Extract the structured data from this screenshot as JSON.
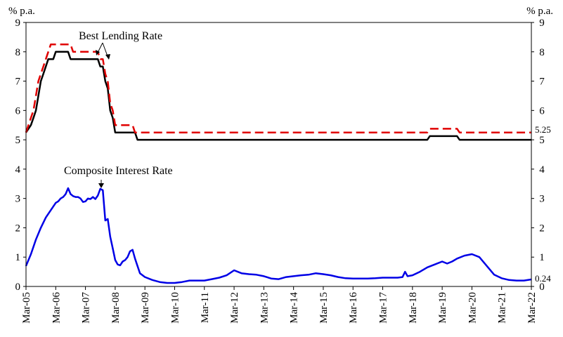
{
  "chart_data": {
    "type": "line",
    "title": "",
    "y_unit_left": "% p.a.",
    "y_unit_right": "% p.a.",
    "ylim": [
      0,
      9
    ],
    "y_ticks": [
      "0",
      "1",
      "2",
      "3",
      "4",
      "5",
      "6",
      "7",
      "8",
      "9"
    ],
    "xlim": [
      "2005-03",
      "2022-03"
    ],
    "x_ticks": [
      "Mar-05",
      "Mar-06",
      "Mar-07",
      "Mar-08",
      "Mar-09",
      "Mar-10",
      "Mar-11",
      "Mar-12",
      "Mar-13",
      "Mar-14",
      "Mar-15",
      "Mar-16",
      "Mar-17",
      "Mar-18",
      "Mar-19",
      "Mar-20",
      "Mar-21",
      "Mar-22"
    ],
    "grid": false,
    "annotations": {
      "best_lending_rate": "Best Lending Rate",
      "composite_interest_rate": "Composite Interest Rate",
      "end_label_upper": "5.25",
      "end_label_lower": "0.24"
    },
    "series": [
      {
        "name": "Best Lending Rate",
        "color": "#000000",
        "style": "solid",
        "points": [
          [
            "2005-03",
            5.25
          ],
          [
            "2005-05",
            5.5
          ],
          [
            "2005-06",
            5.75
          ],
          [
            "2005-07",
            6.0
          ],
          [
            "2005-08",
            6.5
          ],
          [
            "2005-09",
            7.0
          ],
          [
            "2005-10",
            7.25
          ],
          [
            "2005-11",
            7.5
          ],
          [
            "2005-12",
            7.75
          ],
          [
            "2006-02",
            7.75
          ],
          [
            "2006-03",
            8.0
          ],
          [
            "2006-08",
            8.0
          ],
          [
            "2006-09",
            7.75
          ],
          [
            "2007-08",
            7.75
          ],
          [
            "2007-09",
            7.5
          ],
          [
            "2007-10",
            7.5
          ],
          [
            "2007-11",
            7.0
          ],
          [
            "2007-12",
            6.75
          ],
          [
            "2008-01",
            6.0
          ],
          [
            "2008-02",
            5.75
          ],
          [
            "2008-03",
            5.25
          ],
          [
            "2008-11",
            5.25
          ],
          [
            "2008-12",
            5.0
          ],
          [
            "2018-09",
            5.0
          ],
          [
            "2018-10",
            5.125
          ],
          [
            "2019-09",
            5.125
          ],
          [
            "2019-10",
            5.0
          ],
          [
            "2022-03",
            5.0
          ]
        ]
      },
      {
        "name": "",
        "color": "#e00000",
        "style": "dashed",
        "points": [
          [
            "2005-03",
            5.25
          ],
          [
            "2005-05",
            5.75
          ],
          [
            "2005-06",
            6.0
          ],
          [
            "2005-07",
            6.5
          ],
          [
            "2005-08",
            7.0
          ],
          [
            "2005-09",
            7.25
          ],
          [
            "2005-10",
            7.5
          ],
          [
            "2005-11",
            7.75
          ],
          [
            "2005-12",
            8.0
          ],
          [
            "2006-01",
            8.25
          ],
          [
            "2006-09",
            8.25
          ],
          [
            "2006-10",
            8.0
          ],
          [
            "2007-08",
            8.0
          ],
          [
            "2007-09",
            7.75
          ],
          [
            "2007-10",
            7.75
          ],
          [
            "2007-11",
            7.25
          ],
          [
            "2007-12",
            7.0
          ],
          [
            "2008-01",
            6.25
          ],
          [
            "2008-02",
            6.0
          ],
          [
            "2008-03",
            5.5
          ],
          [
            "2008-10",
            5.5
          ],
          [
            "2008-11",
            5.25
          ],
          [
            "2018-09",
            5.25
          ],
          [
            "2018-10",
            5.375
          ],
          [
            "2019-09",
            5.375
          ],
          [
            "2019-10",
            5.25
          ],
          [
            "2022-03",
            5.25
          ]
        ]
      },
      {
        "name": "Composite Interest Rate",
        "color": "#0000e6",
        "style": "solid",
        "points": [
          [
            "2005-03",
            0.7
          ],
          [
            "2005-05",
            1.1
          ],
          [
            "2005-07",
            1.6
          ],
          [
            "2005-09",
            2.0
          ],
          [
            "2005-11",
            2.35
          ],
          [
            "2006-01",
            2.6
          ],
          [
            "2006-03",
            2.85
          ],
          [
            "2006-04",
            2.9
          ],
          [
            "2006-05",
            3.0
          ],
          [
            "2006-06",
            3.05
          ],
          [
            "2006-07",
            3.15
          ],
          [
            "2006-08",
            3.35
          ],
          [
            "2006-09",
            3.15
          ],
          [
            "2006-10",
            3.08
          ],
          [
            "2006-11",
            3.05
          ],
          [
            "2006-12",
            3.05
          ],
          [
            "2007-01",
            3.0
          ],
          [
            "2007-02",
            2.88
          ],
          [
            "2007-03",
            2.9
          ],
          [
            "2007-04",
            3.0
          ],
          [
            "2007-05",
            2.98
          ],
          [
            "2007-06",
            3.05
          ],
          [
            "2007-07",
            2.98
          ],
          [
            "2007-08",
            3.1
          ],
          [
            "2007-09",
            3.33
          ],
          [
            "2007-10",
            3.28
          ],
          [
            "2007-11",
            2.25
          ],
          [
            "2007-12",
            2.3
          ],
          [
            "2008-01",
            1.7
          ],
          [
            "2008-02",
            1.3
          ],
          [
            "2008-03",
            0.9
          ],
          [
            "2008-04",
            0.75
          ],
          [
            "2008-05",
            0.72
          ],
          [
            "2008-06",
            0.85
          ],
          [
            "2008-07",
            0.9
          ],
          [
            "2008-08",
            1.0
          ],
          [
            "2008-09",
            1.2
          ],
          [
            "2008-10",
            1.25
          ],
          [
            "2008-11",
            0.95
          ],
          [
            "2008-12",
            0.7
          ],
          [
            "2009-01",
            0.45
          ],
          [
            "2009-03",
            0.32
          ],
          [
            "2009-06",
            0.22
          ],
          [
            "2009-09",
            0.15
          ],
          [
            "2009-12",
            0.12
          ],
          [
            "2010-03",
            0.12
          ],
          [
            "2010-06",
            0.15
          ],
          [
            "2010-09",
            0.2
          ],
          [
            "2010-12",
            0.2
          ],
          [
            "2011-03",
            0.2
          ],
          [
            "2011-06",
            0.25
          ],
          [
            "2011-09",
            0.3
          ],
          [
            "2011-12",
            0.38
          ],
          [
            "2012-03",
            0.55
          ],
          [
            "2012-06",
            0.45
          ],
          [
            "2012-09",
            0.42
          ],
          [
            "2012-12",
            0.4
          ],
          [
            "2013-03",
            0.35
          ],
          [
            "2013-06",
            0.27
          ],
          [
            "2013-09",
            0.25
          ],
          [
            "2013-12",
            0.32
          ],
          [
            "2014-03",
            0.35
          ],
          [
            "2014-06",
            0.38
          ],
          [
            "2014-09",
            0.4
          ],
          [
            "2014-12",
            0.45
          ],
          [
            "2015-03",
            0.42
          ],
          [
            "2015-06",
            0.38
          ],
          [
            "2015-09",
            0.32
          ],
          [
            "2015-12",
            0.28
          ],
          [
            "2016-03",
            0.27
          ],
          [
            "2016-06",
            0.27
          ],
          [
            "2016-09",
            0.27
          ],
          [
            "2016-12",
            0.28
          ],
          [
            "2017-03",
            0.3
          ],
          [
            "2017-06",
            0.3
          ],
          [
            "2017-09",
            0.3
          ],
          [
            "2017-11",
            0.32
          ],
          [
            "2017-12",
            0.5
          ],
          [
            "2018-01",
            0.35
          ],
          [
            "2018-03",
            0.38
          ],
          [
            "2018-06",
            0.5
          ],
          [
            "2018-09",
            0.65
          ],
          [
            "2018-12",
            0.75
          ],
          [
            "2019-03",
            0.85
          ],
          [
            "2019-05",
            0.78
          ],
          [
            "2019-07",
            0.85
          ],
          [
            "2019-09",
            0.95
          ],
          [
            "2019-12",
            1.05
          ],
          [
            "2020-03",
            1.1
          ],
          [
            "2020-06",
            1.0
          ],
          [
            "2020-09",
            0.7
          ],
          [
            "2020-12",
            0.4
          ],
          [
            "2021-03",
            0.28
          ],
          [
            "2021-06",
            0.22
          ],
          [
            "2021-09",
            0.2
          ],
          [
            "2021-12",
            0.2
          ],
          [
            "2022-03",
            0.24
          ]
        ]
      }
    ]
  }
}
